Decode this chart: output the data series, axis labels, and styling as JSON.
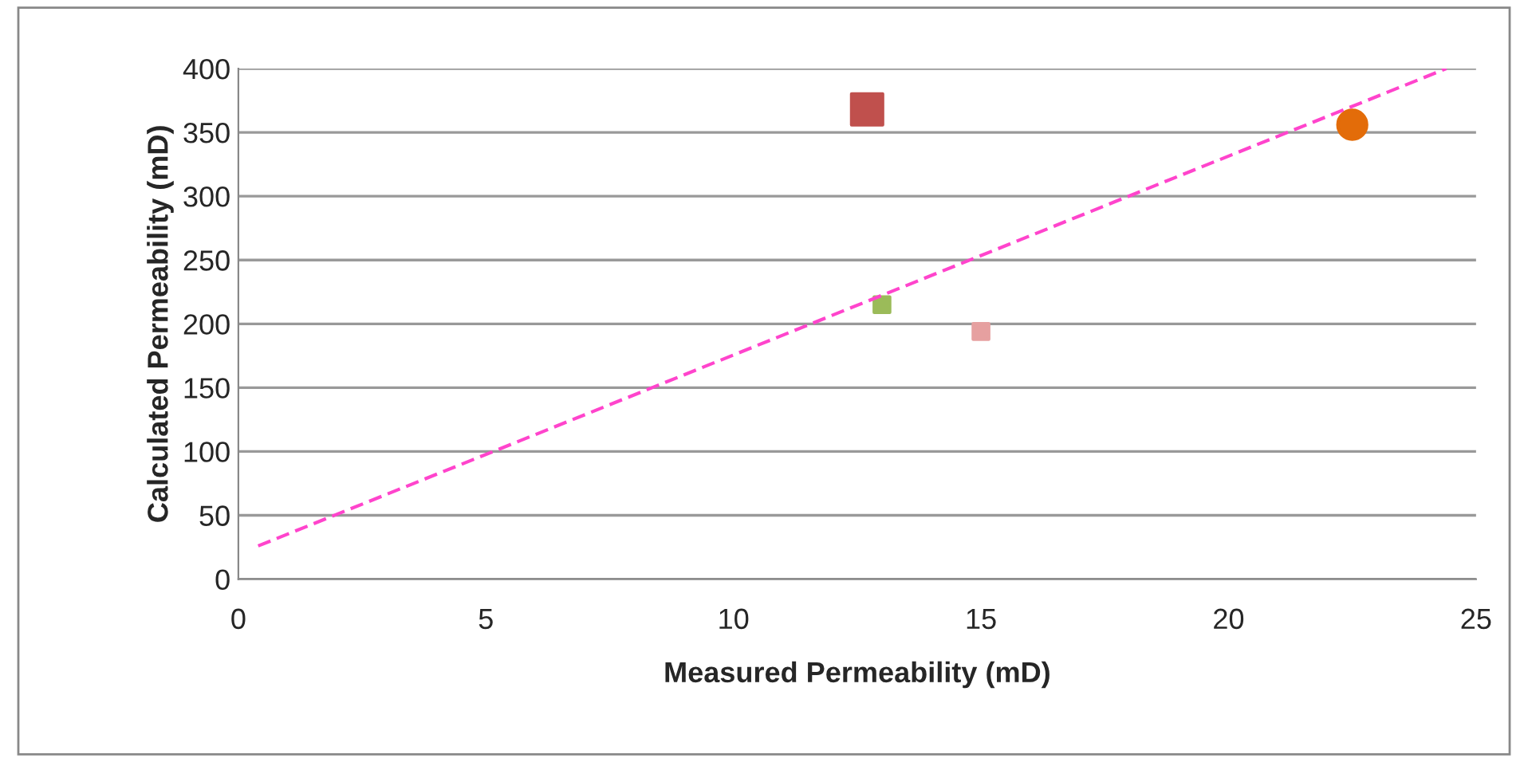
{
  "chart_data": {
    "type": "scatter",
    "xlabel": "Measured Permeability (mD)",
    "ylabel": "Calculated Permeability (mD)",
    "series": [
      {
        "x": [
          12.7
        ],
        "values": [
          368
        ],
        "color": "#c0504d",
        "marker": "square"
      },
      {
        "x": [
          13.0
        ],
        "values": [
          215
        ],
        "color": "#9bbb59",
        "marker": "square"
      },
      {
        "x": [
          15.0
        ],
        "values": [
          194
        ],
        "color": "#e6a0a0",
        "marker": "square"
      },
      {
        "x": [
          22.5
        ],
        "values": [
          356
        ],
        "color": "#e36c09",
        "marker": "circle"
      },
      {
        "type": "line",
        "x": [
          0.4,
          24.4
        ],
        "values": [
          26,
          400
        ],
        "color": "#ff44cc",
        "line_style": "dashed",
        "marker": "none"
      }
    ],
    "xlim": [
      0,
      25
    ],
    "ylim": [
      0,
      400
    ],
    "xticks": [
      0,
      5,
      10,
      15,
      20,
      25
    ],
    "yticks": [
      0,
      50,
      100,
      150,
      200,
      250,
      300,
      350,
      400
    ],
    "grid": "y",
    "legend": false
  }
}
